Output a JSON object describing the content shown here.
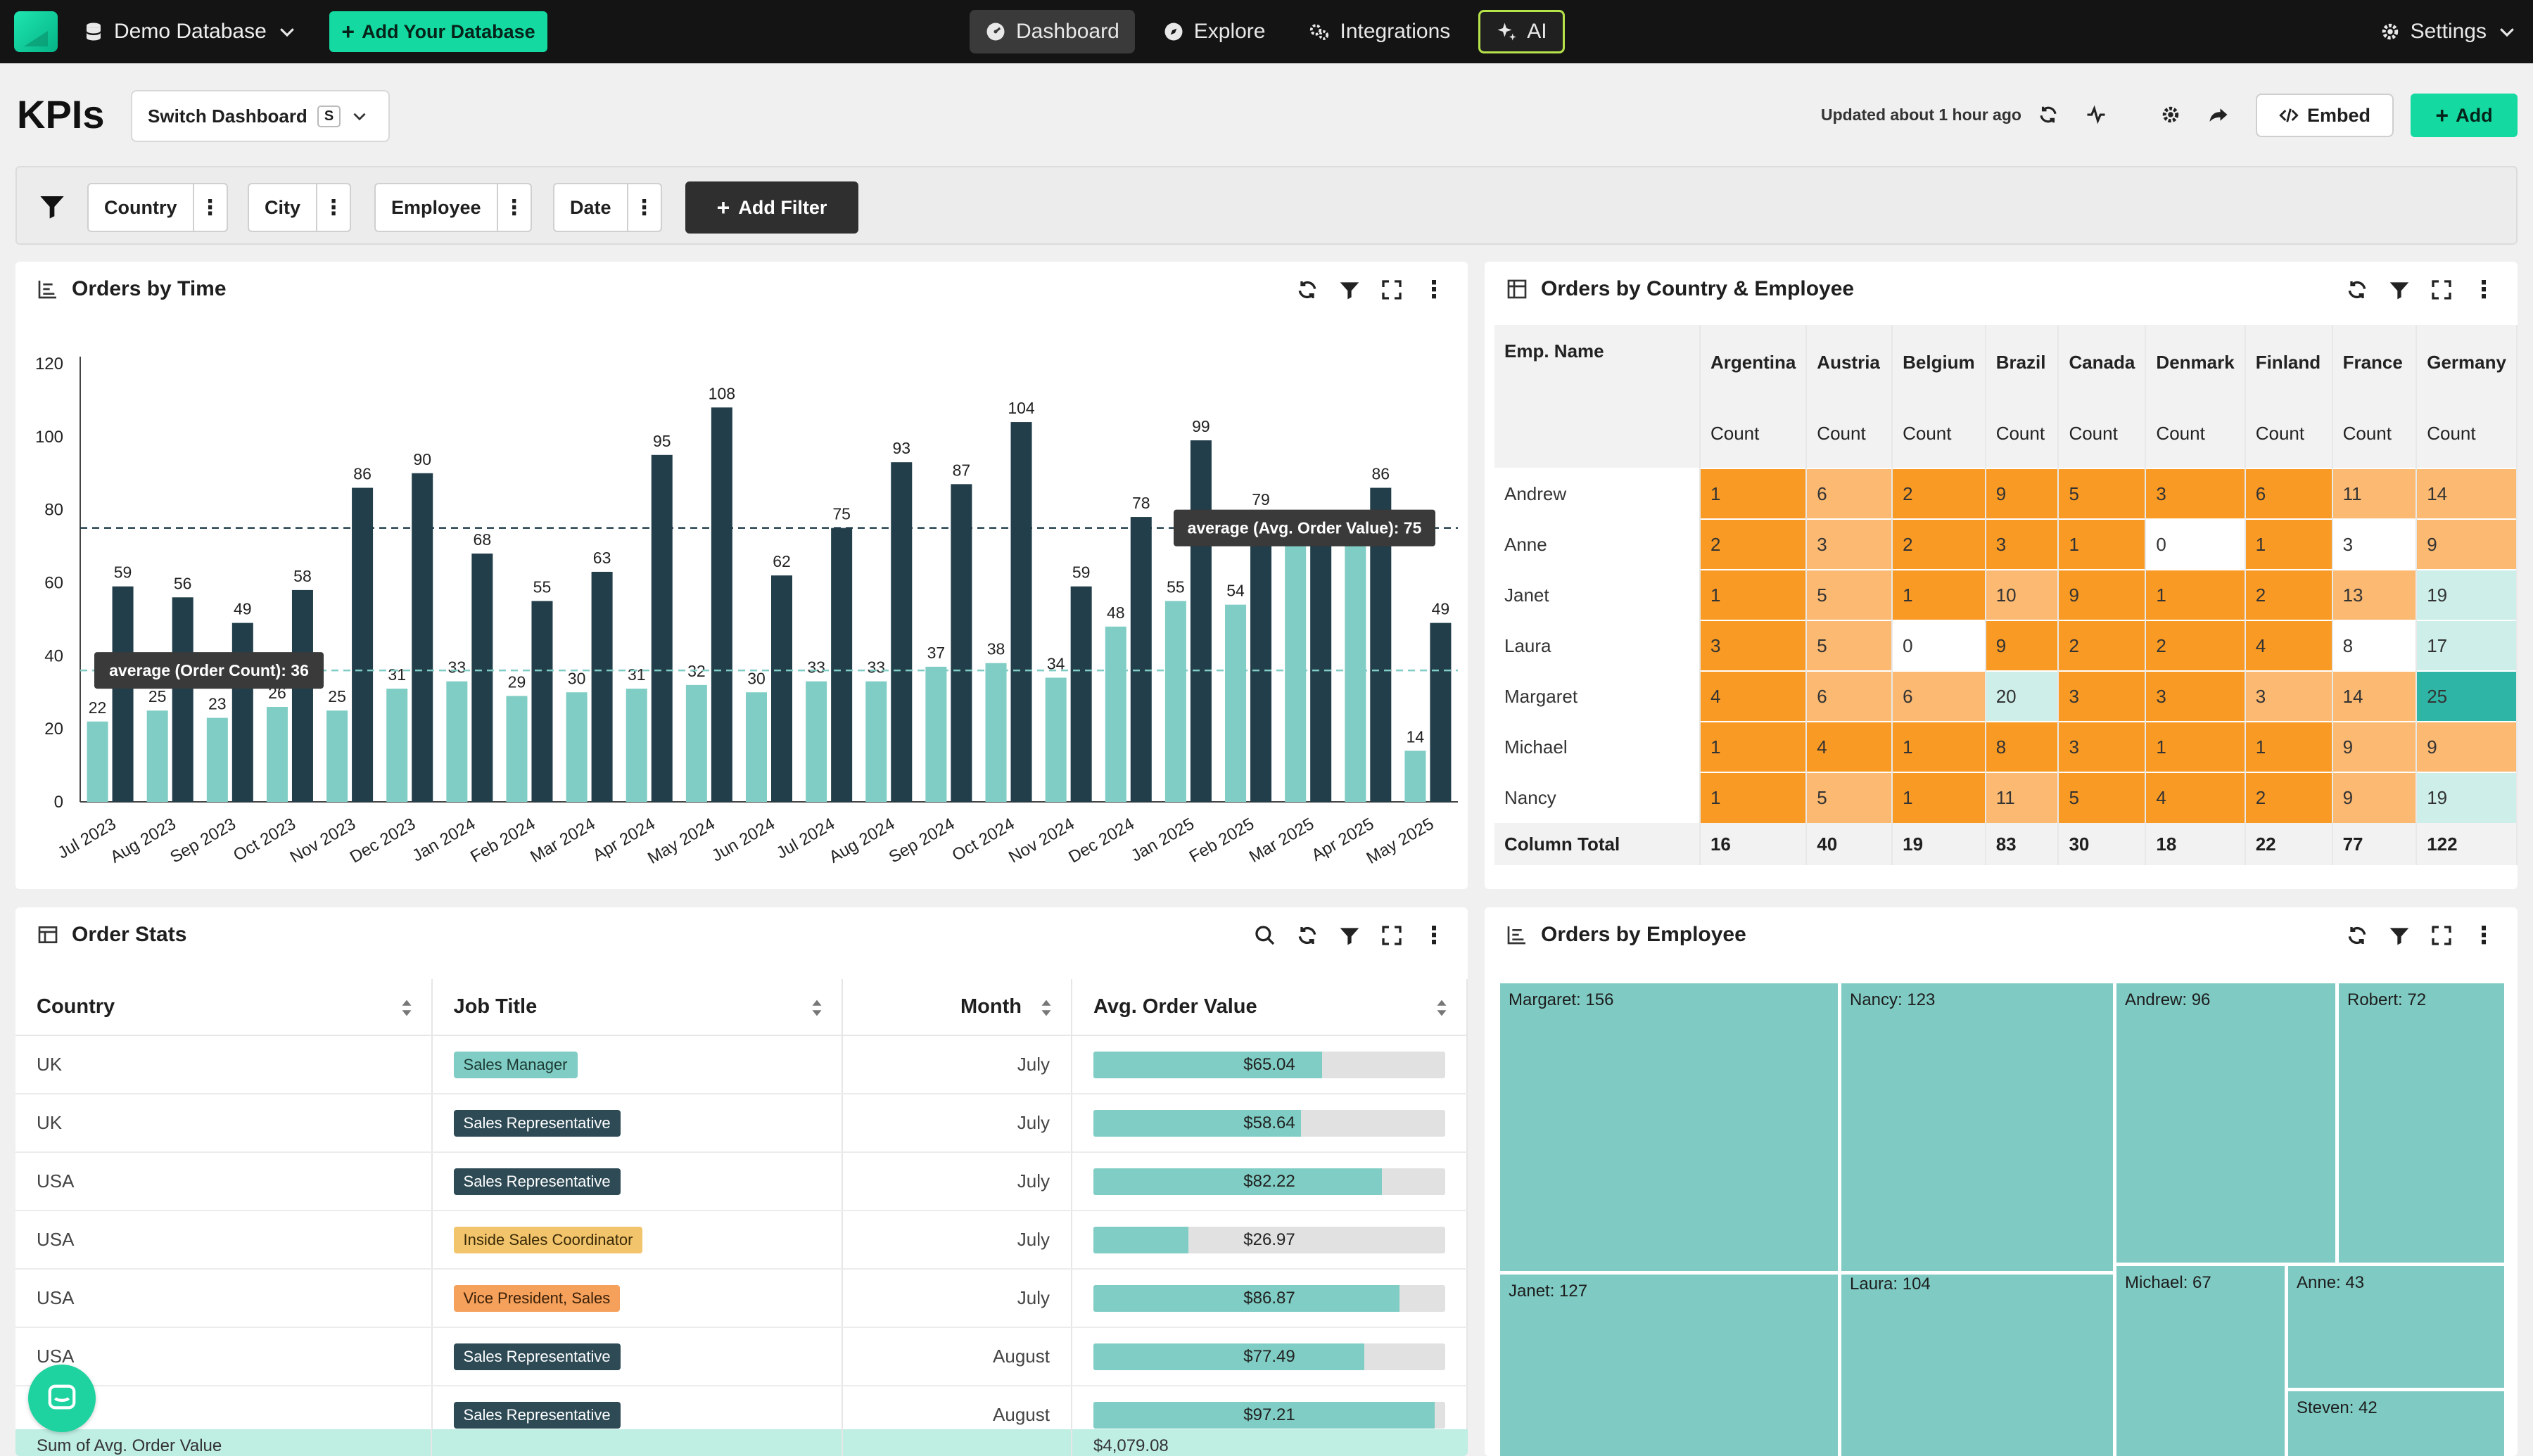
{
  "nav": {
    "database": "Demo Database",
    "add_database": "Add Your Database",
    "items": [
      {
        "label": "Dashboard",
        "active": true
      },
      {
        "label": "Explore"
      },
      {
        "label": "Integrations"
      },
      {
        "label": "AI"
      }
    ],
    "settings": "Settings"
  },
  "header": {
    "title": "KPIs",
    "switch_dashboard": "Switch Dashboard",
    "switch_shortcut": "S",
    "updated": "Updated about 1 hour ago",
    "embed": "Embed",
    "add": "Add"
  },
  "filters": {
    "chips": [
      "Country",
      "City",
      "Employee",
      "Date"
    ],
    "add_filter": "Add Filter"
  },
  "orders_by_time": {
    "title": "Orders by Time",
    "chart_data": {
      "type": "bar",
      "categories": [
        "Jul 2023",
        "Aug 2023",
        "Sep 2023",
        "Oct 2023",
        "Nov 2023",
        "Dec 2023",
        "Jan 2024",
        "Feb 2024",
        "Mar 2024",
        "Apr 2024",
        "May 2024",
        "Jun 2024",
        "Jul 2024",
        "Aug 2024",
        "Sep 2024",
        "Oct 2024",
        "Nov 2024",
        "Dec 2024",
        "Jan 2025",
        "Feb 2025",
        "Mar 2025",
        "Apr 2025",
        "May 2025"
      ],
      "series": [
        {
          "name": "Order Count",
          "color": "#7fcdc4",
          "values": [
            22,
            25,
            23,
            26,
            25,
            31,
            33,
            29,
            30,
            31,
            32,
            30,
            33,
            33,
            37,
            38,
            34,
            48,
            55,
            54,
            73,
            74,
            14
          ]
        },
        {
          "name": "Avg. Order Value",
          "color": "#213e4a",
          "values": [
            59,
            56,
            49,
            58,
            86,
            90,
            68,
            55,
            63,
            95,
            108,
            62,
            75,
            93,
            87,
            104,
            59,
            78,
            99,
            79,
            73,
            86,
            49
          ]
        }
      ],
      "ylim": [
        0,
        120
      ],
      "yticks": [
        0,
        20,
        40,
        60,
        80,
        100,
        120
      ],
      "reference_lines": [
        {
          "label": "average (Order Count): 36",
          "value": 36,
          "color": "#7fcdc4"
        },
        {
          "label": "average (Avg. Order Value): 75",
          "value": 75,
          "color": "#213e4a"
        }
      ]
    }
  },
  "pivot": {
    "title": "Orders by Country & Employee",
    "row_header": "Emp. Name",
    "countries": [
      "Argentina",
      "Austria",
      "Belgium",
      "Brazil",
      "Canada",
      "Denmark",
      "Finland",
      "France",
      "Germany"
    ],
    "measure": "Count",
    "rows": [
      {
        "name": "Andrew",
        "values": [
          1,
          6,
          2,
          9,
          5,
          3,
          6,
          11,
          14
        ]
      },
      {
        "name": "Anne",
        "values": [
          2,
          3,
          2,
          3,
          1,
          0,
          1,
          3,
          9
        ]
      },
      {
        "name": "Janet",
        "values": [
          1,
          5,
          1,
          10,
          9,
          1,
          2,
          13,
          19
        ]
      },
      {
        "name": "Laura",
        "values": [
          3,
          5,
          0,
          9,
          2,
          2,
          4,
          8,
          17
        ]
      },
      {
        "name": "Margaret",
        "values": [
          4,
          6,
          6,
          20,
          3,
          3,
          3,
          14,
          25
        ]
      },
      {
        "name": "Michael",
        "values": [
          1,
          4,
          1,
          8,
          3,
          1,
          1,
          9,
          9
        ]
      },
      {
        "name": "Nancy",
        "values": [
          1,
          5,
          1,
          11,
          5,
          4,
          2,
          9,
          19
        ]
      }
    ],
    "total_label": "Column Total",
    "totals": [
      16,
      40,
      19,
      83,
      30,
      18,
      22,
      77,
      122
    ]
  },
  "order_stats": {
    "title": "Order Stats",
    "columns": [
      "Country",
      "Job Title",
      "Month",
      "Avg. Order Value"
    ],
    "rows": [
      {
        "country": "UK",
        "job": "Sales Manager",
        "job_color": "#7fcdc4",
        "job_text": "#1d3a33",
        "month": "July",
        "value": "$65.04",
        "fill": 0.65
      },
      {
        "country": "UK",
        "job": "Sales Representative",
        "job_color": "#2d4a55",
        "job_text": "#ffffff",
        "month": "July",
        "value": "$58.64",
        "fill": 0.59
      },
      {
        "country": "USA",
        "job": "Sales Representative",
        "job_color": "#2d4a55",
        "job_text": "#ffffff",
        "month": "July",
        "value": "$82.22",
        "fill": 0.82
      },
      {
        "country": "USA",
        "job": "Inside Sales Coordinator",
        "job_color": "#f2c46b",
        "job_text": "#3a2a08",
        "month": "July",
        "value": "$26.97",
        "fill": 0.27
      },
      {
        "country": "USA",
        "job": "Vice President, Sales",
        "job_color": "#f5a15b",
        "job_text": "#3a1f08",
        "month": "July",
        "value": "$86.87",
        "fill": 0.87
      },
      {
        "country": "USA",
        "job": "Sales Representative",
        "job_color": "#2d4a55",
        "job_text": "#ffffff",
        "month": "August",
        "value": "$77.49",
        "fill": 0.77
      },
      {
        "country": "USA",
        "job": "Sales Representative",
        "job_color": "#2d4a55",
        "job_text": "#ffffff",
        "month": "August",
        "value": "$97.21",
        "fill": 0.97
      }
    ],
    "sum_label": "Sum of Avg. Order Value",
    "sum_value": "$4,079.08"
  },
  "orders_by_employee": {
    "title": "Orders by Employee",
    "tiles": [
      "Margaret: 156",
      "Nancy: 123",
      "Andrew: 96",
      "Robert: 72",
      "Janet: 127",
      "Laura: 104",
      "Michael: 67",
      "Anne: 43",
      "Steven: 42"
    ]
  }
}
